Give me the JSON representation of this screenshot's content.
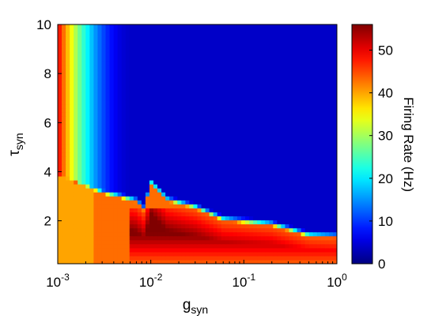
{
  "chart_data": {
    "type": "heatmap",
    "subtype": "filled-contour",
    "x_scale": "log",
    "x_ticks": [
      {
        "value": 0.001,
        "base": "10",
        "exp": "-3"
      },
      {
        "value": 0.01,
        "base": "10",
        "exp": "-2"
      },
      {
        "value": 0.1,
        "base": "10",
        "exp": "-1"
      },
      {
        "value": 1,
        "base": "10",
        "exp": "0"
      }
    ],
    "y_ticks": [
      "2",
      "4",
      "6",
      "8",
      "10"
    ],
    "xlim": [
      0.001,
      1
    ],
    "ylim": [
      0.25,
      10
    ],
    "xlabel": {
      "main": "g",
      "sub": "syn"
    },
    "ylabel": {
      "main": "τ",
      "sub": "syn"
    },
    "colorbar": {
      "label": "Firing Rate (Hz)",
      "range": [
        0,
        56
      ],
      "ticks": [
        "0",
        "10",
        "20",
        "30",
        "40",
        "50"
      ],
      "colormap": "jet"
    },
    "grid": false,
    "boundary": {
      "description": "rate boundary tau threshold vs g_syn",
      "g": [
        0.001,
        0.003,
        0.005,
        0.007,
        0.0085,
        0.01,
        0.015,
        0.03,
        0.06,
        0.2,
        0.5,
        1
      ],
      "tau": [
        3.9,
        3.1,
        2.9,
        2.75,
        2.4,
        3.5,
        2.8,
        2.5,
        2.0,
        1.8,
        1.35,
        1.3
      ]
    },
    "peak_region": {
      "description": "highest firing region (about 50-56 Hz)",
      "g_range": [
        0.006,
        1
      ],
      "tau_range": [
        0.3,
        2.6
      ]
    }
  }
}
